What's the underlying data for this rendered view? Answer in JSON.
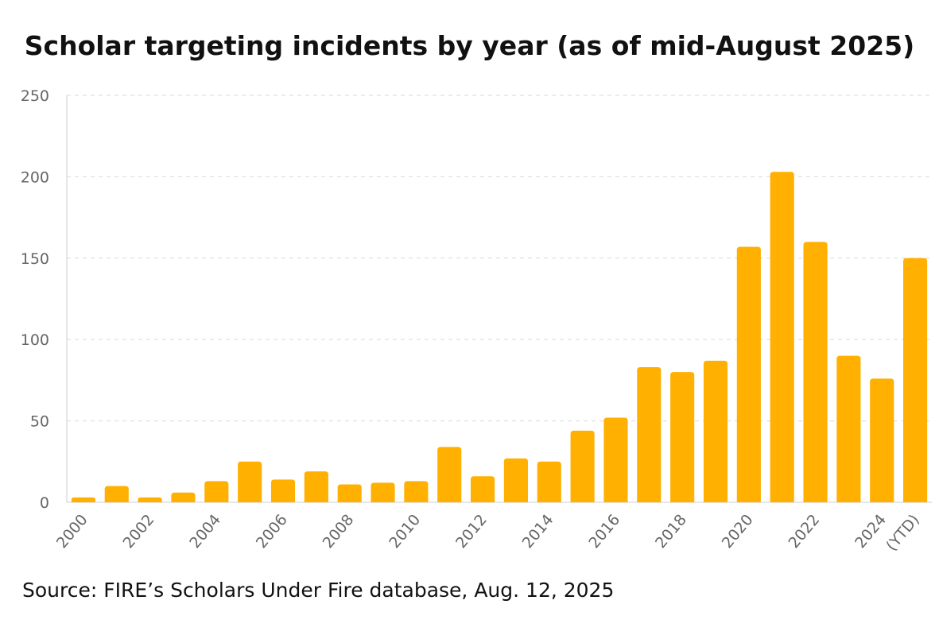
{
  "chart_data": {
    "type": "bar",
    "title": "Scholar targeting incidents by year (as of mid-August 2025)",
    "xlabel": "",
    "ylabel": "",
    "ylim": [
      0,
      250
    ],
    "yticks": [
      0,
      50,
      100,
      150,
      200,
      250
    ],
    "categories": [
      "2000",
      "2001",
      "2002",
      "2003",
      "2004",
      "2005",
      "2006",
      "2007",
      "2008",
      "2009",
      "2010",
      "2011",
      "2012",
      "2013",
      "2014",
      "2015",
      "2016",
      "2017",
      "2018",
      "2019",
      "2020",
      "2021",
      "2022",
      "2023",
      "2024",
      "2025 (YTD)"
    ],
    "tick_labels": [
      "2000",
      "",
      "2002",
      "",
      "2004",
      "",
      "2006",
      "",
      "2008",
      "",
      "2010",
      "",
      "2012",
      "",
      "2014",
      "",
      "2016",
      "",
      "2018",
      "",
      "2020",
      "",
      "2022",
      "",
      "2024",
      "(YTD)"
    ],
    "values": [
      3,
      10,
      3,
      6,
      13,
      25,
      14,
      19,
      11,
      12,
      13,
      34,
      16,
      27,
      25,
      44,
      52,
      83,
      80,
      87,
      157,
      203,
      160,
      90,
      76,
      150
    ],
    "grid": true,
    "legend": "none"
  },
  "colors": {
    "bar": "#FFB000",
    "grid": "#d9d9d9",
    "axis": "#cccccc",
    "tick_text": "#666666"
  },
  "source": "Source: FIRE’s Scholars Under Fire database, Aug. 12, 2025"
}
